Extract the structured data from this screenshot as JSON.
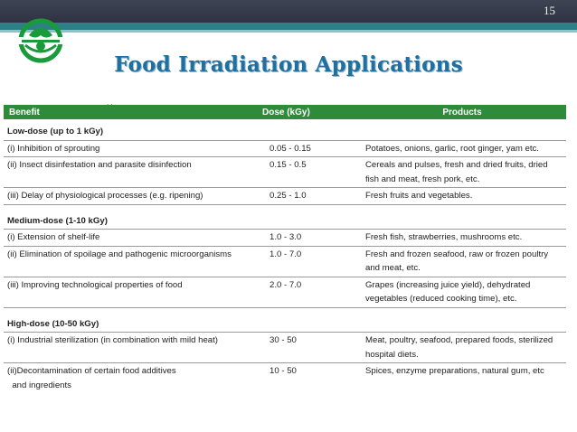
{
  "slide": {
    "number": "15",
    "title": "Food Irradiation Applications",
    "ticks": ". ."
  },
  "logo": {
    "name": "radura-symbol",
    "color": "#1a9a3a"
  },
  "table": {
    "headers": {
      "benefit": "Benefit",
      "dose": "Dose (kGy)",
      "products": "Products"
    },
    "sections": [
      {
        "title": "Low-dose (up to 1 kGy)",
        "rows": [
          {
            "benefit": "(i) Inhibition of sprouting",
            "dose": "0.05 - 0.15",
            "products": "Potatoes, onions, garlic, root ginger, yam etc."
          },
          {
            "benefit": "(ii) Insect disinfestation and parasite disinfection",
            "dose": "0.15 - 0.5",
            "products": "Cereals and pulses, fresh and dried fruits, dried",
            "products2": "fish and meat, fresh pork, etc."
          },
          {
            "benefit": "(iii) Delay of physiological processes (e.g. ripening)",
            "dose": "0.25 - 1.0",
            "products": "Fresh fruits and vegetables."
          }
        ]
      },
      {
        "title": "Medium-dose (1-10 kGy)",
        "rows": [
          {
            "benefit": "(i) Extension of shelf-life",
            "dose": "1.0 - 3.0",
            "products": "Fresh fish, strawberries, mushrooms etc."
          },
          {
            "benefit": "(ii) Elimination of spoilage and pathogenic microorganisms",
            "dose": "1.0 - 7.0",
            "products": "Fresh and frozen seafood, raw or frozen poultry",
            "products2": "and meat, etc."
          },
          {
            "benefit": "(iii) Improving technological properties of food",
            "dose": "2.0 - 7.0",
            "products": "Grapes (increasing juice yield), dehydrated",
            "products2": "vegetables (reduced cooking time), etc."
          }
        ]
      },
      {
        "title": "High-dose (10-50 kGy)",
        "rows": [
          {
            "benefit": "(i) Industrial sterilization (in combination with mild heat)",
            "dose": "30 - 50",
            "products": "Meat, poultry, seafood, prepared foods, sterilized",
            "products2": "hospital diets."
          },
          {
            "benefit": "(ii)Decontamination of certain food additives",
            "benefit2": "and ingredients",
            "dose": "10 - 50",
            "products": "Spices, enzyme preparations, natural gum, etc"
          }
        ]
      }
    ]
  }
}
